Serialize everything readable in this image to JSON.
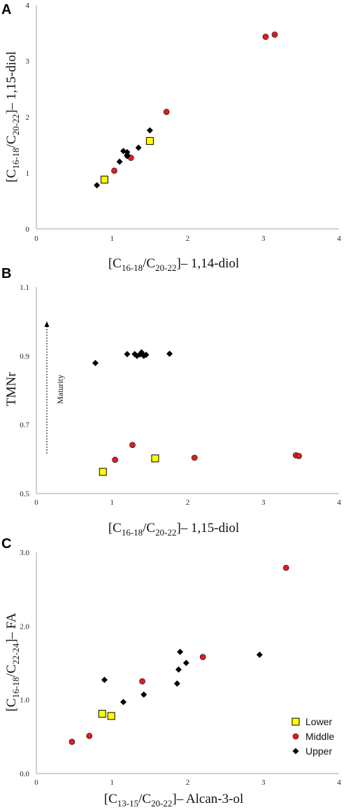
{
  "chart_data": [
    {
      "panel": "A",
      "type": "scatter",
      "title": "",
      "xlabel": {
        "open": "[C",
        "sub1": "16-18",
        "mid": "/C",
        "sub2": "20-22",
        "close": "]– 1,14-diol"
      },
      "ylabel": {
        "open": "[C",
        "sub1": "16-18",
        "mid": "/C",
        "sub2": "20-22",
        "close": "]– 1,15-diol"
      },
      "xlim": [
        0,
        4
      ],
      "ylim": [
        0,
        4
      ],
      "xticks": [
        "0",
        "1",
        "2",
        "3",
        "4"
      ],
      "yticks": [
        "0",
        "1",
        "2",
        "3",
        "4"
      ],
      "grid": false,
      "series": [
        {
          "name": "Lower",
          "values": [
            [
              0.9,
              0.88
            ],
            [
              1.5,
              1.57
            ]
          ]
        },
        {
          "name": "Middle",
          "values": [
            [
              1.03,
              1.04
            ],
            [
              1.25,
              1.27
            ],
            [
              1.72,
              2.09
            ],
            [
              3.03,
              3.43
            ],
            [
              3.15,
              3.47
            ]
          ]
        },
        {
          "name": "Upper",
          "values": [
            [
              0.8,
              0.78
            ],
            [
              1.1,
              1.2
            ],
            [
              1.15,
              1.39
            ],
            [
              1.2,
              1.37
            ],
            [
              1.2,
              1.32
            ],
            [
              1.2,
              1.3
            ],
            [
              1.35,
              1.45
            ],
            [
              1.5,
              1.76
            ]
          ]
        }
      ]
    },
    {
      "panel": "B",
      "type": "scatter",
      "title": "",
      "xlabel": {
        "open": "[C",
        "sub1": "16-18",
        "mid": "/C",
        "sub2": "20-22",
        "close": "]– 1,15-diol"
      },
      "ylabel": {
        "text": "TMNr"
      },
      "xlim": [
        0,
        4
      ],
      "ylim": [
        0.5,
        1.1
      ],
      "xticks": [
        "0",
        "1",
        "2",
        "3",
        "4"
      ],
      "yticks": [
        "0.5",
        "0.7",
        "0.9",
        "1.1"
      ],
      "grid": false,
      "annotation": "Maturity",
      "series": [
        {
          "name": "Lower",
          "values": [
            [
              0.88,
              0.563
            ],
            [
              1.57,
              0.602
            ]
          ]
        },
        {
          "name": "Middle",
          "values": [
            [
              1.04,
              0.598
            ],
            [
              1.27,
              0.641
            ],
            [
              2.09,
              0.604
            ],
            [
              3.43,
              0.611
            ],
            [
              3.47,
              0.609
            ]
          ]
        },
        {
          "name": "Upper",
          "values": [
            [
              0.78,
              0.879
            ],
            [
              1.2,
              0.905
            ],
            [
              1.3,
              0.905
            ],
            [
              1.33,
              0.9
            ],
            [
              1.37,
              0.904
            ],
            [
              1.39,
              0.91
            ],
            [
              1.42,
              0.9
            ],
            [
              1.45,
              0.903
            ],
            [
              1.76,
              0.906
            ]
          ]
        }
      ]
    },
    {
      "panel": "C",
      "type": "scatter",
      "title": "",
      "xlabel": {
        "open": "[C",
        "sub1": "13-15",
        "mid": "/C",
        "sub2": "20-22",
        "close": "]– Alcan-3-ol"
      },
      "ylabel": {
        "open": "[C",
        "sub1": "16-18",
        "mid": "/C",
        "sub2": "22-24",
        "close": "]– FA"
      },
      "xlim": [
        0,
        4
      ],
      "ylim": [
        0,
        3
      ],
      "xticks": [
        "0",
        "1",
        "2",
        "3",
        "4"
      ],
      "yticks": [
        "0.0",
        "1.0",
        "2.0",
        "3.0"
      ],
      "grid": false,
      "legend": {
        "position": "right",
        "entries": [
          "Lower",
          "Middle",
          "Upper"
        ]
      },
      "series": [
        {
          "name": "Lower",
          "values": [
            [
              0.87,
              0.81
            ],
            [
              0.99,
              0.78
            ]
          ]
        },
        {
          "name": "Middle",
          "values": [
            [
              0.47,
              0.43
            ],
            [
              0.7,
              0.51
            ],
            [
              1.4,
              1.25
            ],
            [
              2.2,
              1.58
            ],
            [
              3.3,
              2.79
            ]
          ]
        },
        {
          "name": "Upper",
          "values": [
            [
              0.9,
              1.27
            ],
            [
              1.15,
              0.97
            ],
            [
              1.42,
              1.07
            ],
            [
              1.86,
              1.22
            ],
            [
              1.88,
              1.41
            ],
            [
              1.9,
              1.65
            ],
            [
              1.98,
              1.5
            ],
            [
              2.95,
              1.61
            ]
          ]
        }
      ]
    }
  ],
  "colors": {
    "Lower": "#ffff00",
    "Middle": "#e31c1c",
    "Upper": "#000000",
    "axis": "#a6a6a6"
  },
  "markers": {
    "Lower": "square",
    "Middle": "circle",
    "Upper": "diamond"
  }
}
